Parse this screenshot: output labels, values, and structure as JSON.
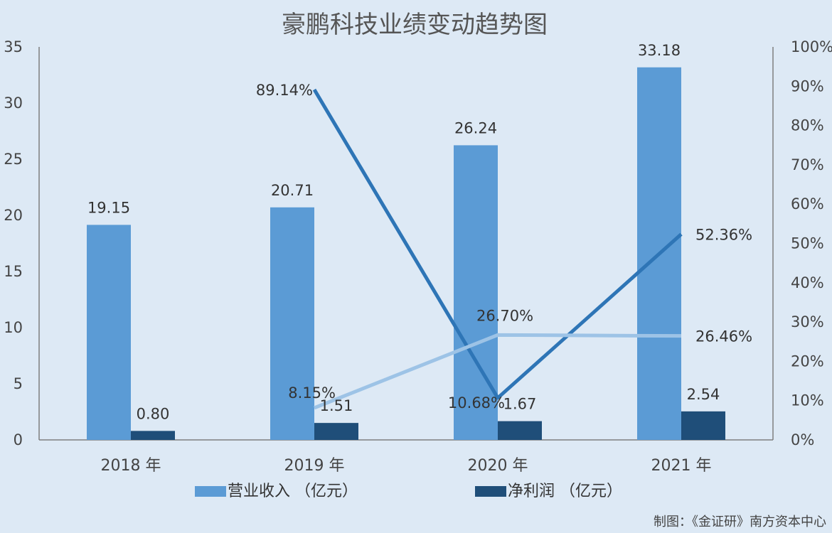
{
  "chart_data": {
    "type": "bar",
    "title": "豪鹏科技业绩变动趋势图",
    "categories": [
      "2018 年",
      "2019 年",
      "2020 年",
      "2021 年"
    ],
    "left_axis": {
      "ylim": [
        0,
        35
      ],
      "ticks": [
        "0",
        "5",
        "10",
        "15",
        "20",
        "25",
        "30",
        "35"
      ]
    },
    "right_axis": {
      "ylim": [
        0,
        100
      ],
      "ticks": [
        "0%",
        "10%",
        "20%",
        "30%",
        "40%",
        "50%",
        "60%",
        "70%",
        "80%",
        "90%",
        "100%"
      ]
    },
    "bar_series": [
      {
        "name": "营业收入 （亿元）",
        "color": "#5b9bd5",
        "values": [
          19.15,
          20.71,
          26.24,
          33.18
        ],
        "labels": [
          "19.15",
          "20.71",
          "26.24",
          "33.18"
        ]
      },
      {
        "name": "净利润 （亿元）",
        "color": "#1f4e79",
        "values": [
          0.8,
          1.51,
          1.67,
          2.54
        ],
        "labels": [
          "0.80",
          "1.51",
          "1.67",
          "2.54"
        ]
      }
    ],
    "line_series": [
      {
        "color": "#2e75b6",
        "points": [
          [
            1,
            89.14
          ],
          [
            2,
            10.68
          ],
          [
            3,
            52.36
          ]
        ],
        "labels": [
          "89.14%",
          "10.68%",
          "52.36%"
        ]
      },
      {
        "color": "#9dc3e6",
        "points": [
          [
            1,
            8.15
          ],
          [
            2,
            26.7
          ],
          [
            3,
            26.46
          ]
        ],
        "labels": [
          "8.15%",
          "26.70%",
          "26.46%"
        ]
      }
    ],
    "grid": false,
    "legend": "bottom"
  },
  "credit": "制图：《金证研》南方资本中心"
}
